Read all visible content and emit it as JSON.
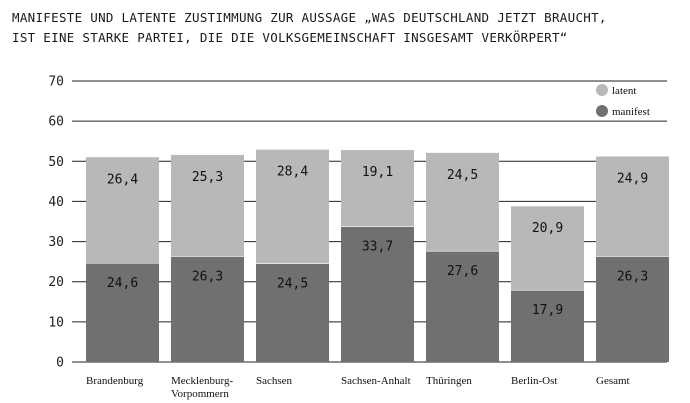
{
  "title_lines": [
    "MANIFESTE UND LATENTE ZUSTIMMUNG ZUR AUSSAGE „WAS DEUTSCHLAND JETZT BRAUCHT,",
    "IST EINE STARKE PARTEI, DIE DIE VOLKSGEMEINSCHAFT INSGESAMT VERKÖRPERT“"
  ],
  "colors": {
    "latent": "#b8b8b9",
    "manifest": "#6f7072",
    "grid": "#222222"
  },
  "chart_data": {
    "type": "bar",
    "stacked": true,
    "title": "MANIFESTE UND LATENTE ZUSTIMMUNG ZUR AUSSAGE „WAS DEUTSCHLAND JETZT BRAUCHT, IST EINE STARKE PARTEI, DIE DIE VOLKSGEMEINSCHAFT INSGESAMT VERKÖRPERT“",
    "categories": [
      [
        "Brandenburg"
      ],
      [
        "Mecklenburg-",
        "Vorpommern"
      ],
      [
        "Sachsen"
      ],
      [
        "Sachsen-Anhalt"
      ],
      [
        "Thüringen"
      ],
      [
        "Berlin-Ost"
      ],
      [
        "Gesamt"
      ]
    ],
    "series": [
      {
        "name": "manifest",
        "values": [
          24.6,
          26.3,
          24.5,
          33.7,
          27.6,
          17.9,
          26.3
        ],
        "labels": [
          "24,6",
          "26,3",
          "24,5",
          "33,7",
          "27,6",
          "17,9",
          "26,3"
        ]
      },
      {
        "name": "latent",
        "values": [
          26.4,
          25.3,
          28.4,
          19.1,
          24.5,
          20.9,
          24.9
        ],
        "labels": [
          "26,4",
          "25,3",
          "28,4",
          "19,1",
          "24,5",
          "20,9",
          "24,9"
        ]
      }
    ],
    "ylim": [
      0,
      70
    ],
    "yticks": [
      0,
      10,
      20,
      30,
      40,
      50,
      60,
      70
    ],
    "grid": true,
    "legend": {
      "position": "top-right",
      "order": [
        "latent",
        "manifest"
      ]
    }
  }
}
